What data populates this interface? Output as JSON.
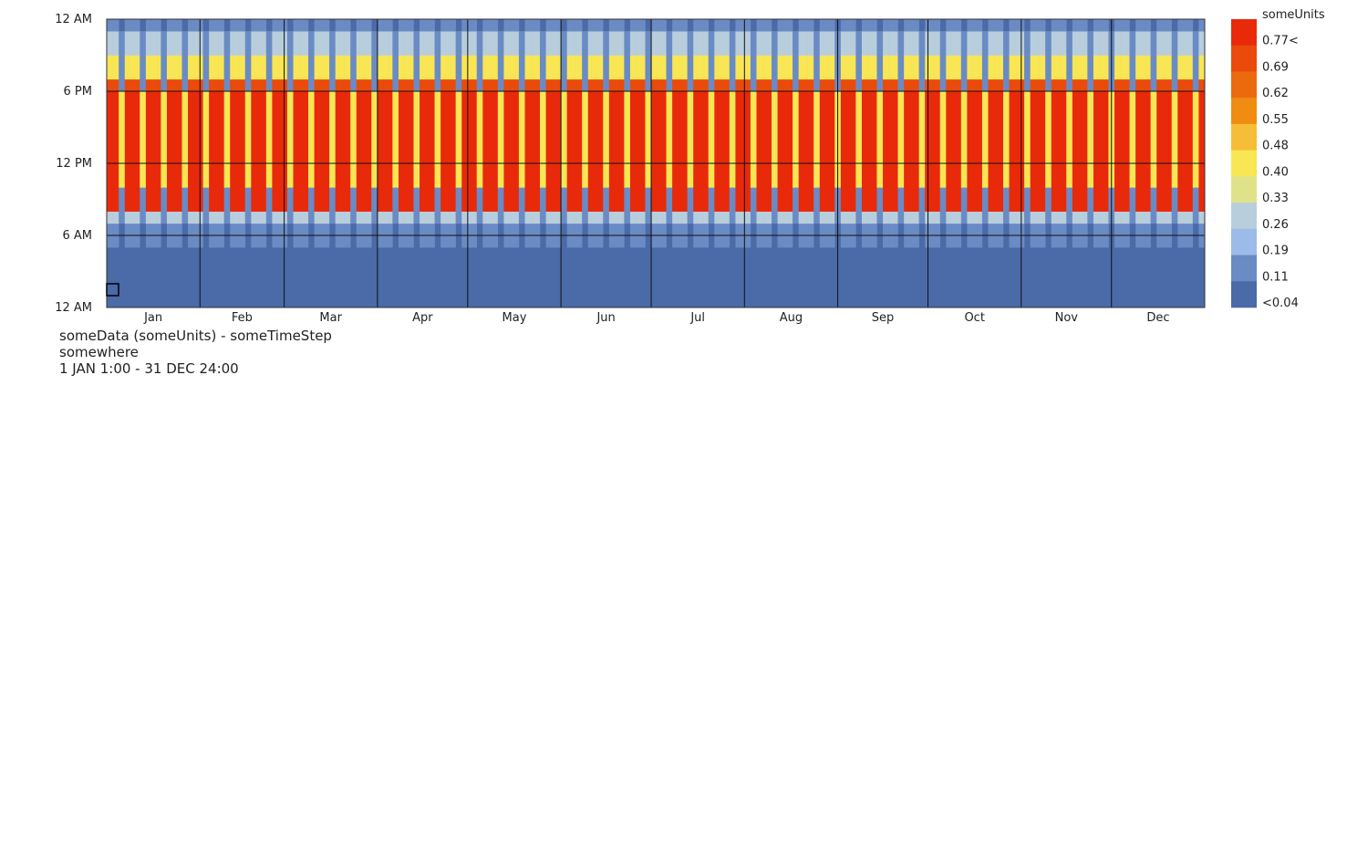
{
  "chart_data": {
    "type": "heatmap",
    "title": "someData (someUnits) - someTimeStep",
    "subtitle": "somewhere",
    "period": "1 JAN 1:00 - 31 DEC 24:00",
    "x_axis": {
      "type": "date",
      "range": [
        "2019-01-01",
        "2019-12-31"
      ],
      "tick_labels": [
        "Jan",
        "Feb",
        "Mar",
        "Apr",
        "May",
        "Jun",
        "Jul",
        "Aug",
        "Sep",
        "Oct",
        "Nov",
        "Dec"
      ]
    },
    "y_axis": {
      "quantity": "hour of day",
      "range": [
        0,
        24
      ],
      "tick_labels": [
        "12 AM",
        "6 PM",
        "12 PM",
        "6 AM",
        "12 AM"
      ],
      "tick_values": [
        24,
        18,
        12,
        6,
        0
      ]
    },
    "grid": true,
    "legend": {
      "title": "someUnits",
      "placement": "right",
      "labels": [
        "0.77<",
        "0.69",
        "0.62",
        "0.55",
        "0.48",
        "0.40",
        "0.33",
        "0.26",
        "0.19",
        "0.11",
        "<0.04"
      ],
      "colors": [
        "#e82a0a",
        "#ea4a0c",
        "#ec6a0e",
        "#f08c12",
        "#f6be38",
        "#f8e654",
        "#e0e28a",
        "#b8cedd",
        "#9dbbe9",
        "#6a8bc4",
        "#4a6aa8"
      ]
    },
    "daily_profile": {
      "hours": [
        0,
        1,
        2,
        3,
        4,
        5,
        6,
        7,
        8,
        9,
        10,
        11,
        12,
        13,
        14,
        15,
        16,
        17,
        18,
        19,
        20,
        21,
        22,
        23
      ],
      "weekday_values": [
        0.02,
        0.02,
        0.02,
        0.02,
        0.02,
        0.05,
        0.05,
        0.26,
        0.85,
        0.85,
        0.85,
        0.85,
        0.85,
        0.85,
        0.85,
        0.85,
        0.85,
        0.85,
        0.69,
        0.44,
        0.44,
        0.26,
        0.26,
        0.11
      ],
      "weekend_values": [
        0.02,
        0.02,
        0.02,
        0.02,
        0.02,
        0.02,
        0.02,
        0.04,
        0.04,
        0.04,
        0.4,
        0.4,
        0.4,
        0.4,
        0.4,
        0.4,
        0.4,
        0.4,
        0.04,
        0.04,
        0.04,
        0.04,
        0.04,
        0.02
      ],
      "week_pattern": [
        "weekend",
        "weekday",
        "weekday",
        "weekday",
        "weekday",
        "weekday",
        "weekend"
      ]
    }
  }
}
